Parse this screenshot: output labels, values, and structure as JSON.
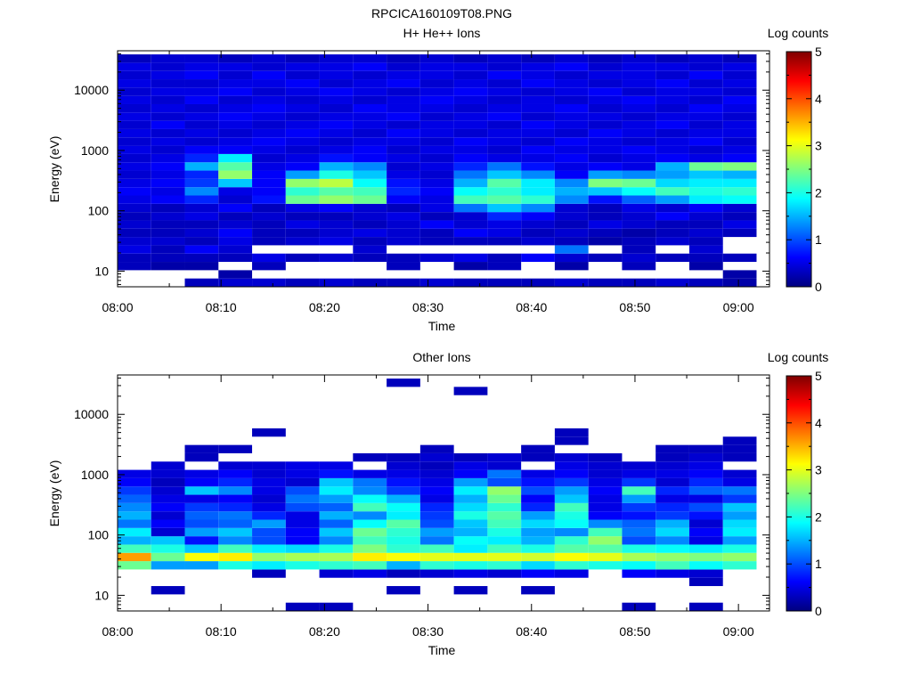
{
  "figure_title": "RPCICA160109T08.PNG",
  "colors": {
    "colormap": [
      "#00007f",
      "#0000ff",
      "#007fff",
      "#00ffff",
      "#7fff7f",
      "#ffff00",
      "#ff7f00",
      "#ff0000",
      "#7f0000"
    ],
    "background": "#ffffff",
    "axes": "#000000"
  },
  "chart_data": [
    {
      "type": "heatmap",
      "title": "H+ He++ Ions",
      "xlabel": "Time",
      "ylabel": "Energy (eV)",
      "x_tick_labels": [
        "08:00",
        "08:10",
        "08:20",
        "08:30",
        "08:40",
        "08:50",
        "09:00"
      ],
      "x_range_minutes": [
        0,
        63
      ],
      "y_tick_labels": [
        "10",
        "100",
        "1000",
        "10000"
      ],
      "y_scale": "log",
      "y_range_eV": [
        5.5,
        45000
      ],
      "time_bins_minutes": [
        0,
        3.25,
        6.5,
        9.75,
        13,
        16.25,
        19.5,
        22.75,
        26,
        29.25,
        32.5,
        35.75,
        39,
        42.25,
        45.5,
        48.75,
        52,
        55.25,
        58.5,
        61.75
      ],
      "energy_bins_eV": [
        5.5,
        7.55,
        10.36,
        14.23,
        19.53,
        26.81,
        36.8,
        50.52,
        69.35,
        95.2,
        130.7,
        179.4,
        246.3,
        338.1,
        464.1,
        637.2,
        874.7,
        1201,
        1648,
        2263,
        3106,
        4264,
        5853,
        8036,
        11030,
        15140,
        20790,
        28540,
        39180
      ],
      "colorbar_label": "Log counts",
      "colorbar_ticks": [
        "0",
        "1",
        "2",
        "3",
        "4",
        "5"
      ],
      "colorbar_range": [
        0,
        5
      ],
      "log_counts": [
        [
          0,
          0,
          0.3,
          0.4,
          0.4,
          0.3,
          0.4,
          0.3,
          0.3,
          0.4,
          0.3,
          0.3,
          0.3,
          0.4,
          0.3,
          0.3,
          0.4,
          0.3,
          0.2
        ],
        [
          0,
          0,
          0,
          0.2,
          0,
          0,
          0,
          0,
          0,
          0,
          0,
          0,
          0,
          0,
          0,
          0,
          0,
          0,
          0.2
        ],
        [
          0.3,
          0.2,
          0.2,
          0,
          0.3,
          0,
          0,
          0,
          0.3,
          0,
          0.2,
          0.3,
          0,
          0.2,
          0,
          0.3,
          0,
          0.2,
          0
        ],
        [
          0.3,
          0.3,
          0.3,
          0.3,
          0.5,
          0.3,
          0.4,
          0.3,
          0.3,
          0.4,
          0.5,
          0.3,
          0.6,
          0.4,
          0.3,
          0.4,
          0.3,
          0.3,
          0.3
        ],
        [
          0.5,
          0.3,
          0.6,
          0.4,
          0,
          0,
          0,
          0.4,
          0,
          0,
          0,
          0,
          0,
          1.2,
          0,
          0.3,
          0,
          0.4,
          0
        ],
        [
          0.4,
          0.4,
          0.3,
          0.5,
          0.3,
          0.4,
          0.5,
          0.3,
          0.4,
          0.3,
          0.3,
          0.3,
          0.4,
          0.3,
          0.2,
          0.3,
          0.4,
          0.3,
          0
        ],
        [
          0.3,
          0.3,
          0.4,
          0.6,
          0.3,
          0.3,
          0.4,
          0.5,
          0.4,
          0.3,
          0.6,
          0.5,
          0.3,
          0.4,
          0.3,
          0.2,
          0.3,
          0.4,
          0.3
        ],
        [
          0.4,
          0.3,
          0.3,
          0.4,
          0.3,
          0.5,
          0.4,
          0.3,
          0.4,
          0.6,
          0.4,
          0.5,
          0.4,
          0.3,
          0.5,
          0.4,
          0.3,
          0.3,
          0.5
        ],
        [
          0.3,
          0.4,
          0.5,
          0.3,
          0.4,
          0.3,
          0.3,
          0.4,
          0.5,
          0.3,
          0.4,
          0.8,
          0.6,
          0.4,
          0.3,
          0.4,
          0.6,
          0.4,
          0.3
        ],
        [
          0.4,
          0.3,
          0.4,
          0.6,
          0.3,
          0.5,
          0.6,
          0.4,
          0.3,
          0.5,
          1.2,
          1.6,
          1.3,
          0.4,
          0.3,
          0.5,
          0.4,
          0.6,
          0.4
        ],
        [
          0.5,
          0.6,
          0.8,
          0.4,
          0.7,
          2.4,
          2.6,
          2.4,
          0.6,
          0.5,
          2.2,
          2.3,
          2.1,
          1.3,
          0.7,
          1.1,
          1.4,
          1.8,
          1.9
        ],
        [
          0.6,
          0.5,
          1.3,
          0.5,
          0.6,
          2.1,
          2.3,
          2.2,
          0.8,
          0.6,
          1.9,
          2.1,
          1.8,
          1.5,
          1.6,
          1.9,
          2.2,
          2.0,
          2.1
        ],
        [
          0.5,
          0.6,
          0.9,
          1.6,
          0.6,
          2.6,
          2.8,
          1.9,
          0.7,
          0.5,
          1.5,
          2.3,
          1.8,
          1.3,
          2.5,
          2.4,
          1.7,
          1.8,
          1.8
        ],
        [
          0.4,
          0.5,
          0.8,
          2.6,
          0.6,
          1.4,
          2.0,
          1.6,
          0.5,
          0.4,
          1.2,
          1.6,
          1.3,
          0.6,
          1.4,
          1.3,
          1.4,
          1.6,
          1.5
        ],
        [
          0.5,
          0.6,
          1.5,
          2.3,
          0.5,
          0.6,
          1.5,
          1.3,
          0.4,
          0.5,
          0.8,
          1.2,
          0.7,
          0.5,
          0.6,
          0.5,
          1.5,
          2.4,
          2.5
        ],
        [
          0.4,
          0.5,
          0.8,
          1.8,
          0.4,
          0.5,
          0.7,
          0.6,
          0.5,
          0.4,
          0.6,
          0.5,
          0.5,
          0.6,
          0.4,
          0.5,
          0.6,
          0.5,
          0.6
        ],
        [
          0.5,
          0.4,
          0.6,
          0.6,
          0.5,
          0.4,
          0.5,
          0.6,
          0.4,
          0.5,
          0.5,
          0.4,
          0.6,
          0.5,
          0.5,
          0.6,
          0.5,
          0.4,
          0.5
        ],
        [
          0.4,
          0.5,
          0.4,
          0.5,
          0.6,
          0.5,
          0.4,
          0.5,
          0.5,
          0.4,
          0.6,
          0.5,
          0.4,
          0.6,
          0.5,
          0.4,
          0.5,
          0.6,
          0.4
        ],
        [
          0.5,
          0.4,
          0.5,
          0.4,
          0.5,
          0.6,
          0.5,
          0.4,
          0.6,
          0.5,
          0.4,
          0.5,
          0.5,
          0.4,
          0.6,
          0.5,
          0.4,
          0.5,
          0.5
        ],
        [
          0.4,
          0.6,
          0.4,
          0.5,
          0.4,
          0.5,
          0.6,
          0.5,
          0.4,
          0.5,
          0.5,
          0.4,
          0.6,
          0.5,
          0.4,
          0.5,
          0.6,
          0.4,
          0.5
        ],
        [
          0.5,
          0.4,
          0.5,
          0.6,
          0.5,
          0.4,
          0.5,
          0.5,
          0.6,
          0.4,
          0.5,
          0.6,
          0.4,
          0.5,
          0.5,
          0.4,
          0.5,
          0.5,
          0.4
        ],
        [
          0.4,
          0.5,
          0.4,
          0.5,
          0.6,
          0.5,
          0.4,
          0.6,
          0.5,
          0.5,
          0.4,
          0.5,
          0.5,
          0.6,
          0.4,
          0.5,
          0.4,
          0.6,
          0.5
        ],
        [
          0.5,
          0.4,
          0.6,
          0.4,
          0.5,
          0.4,
          0.5,
          0.4,
          0.5,
          0.6,
          0.5,
          0.4,
          0.5,
          0.4,
          0.5,
          0.6,
          0.5,
          0.4,
          0.6
        ],
        [
          0.4,
          0.5,
          0.5,
          0.6,
          0.4,
          0.5,
          0.6,
          0.5,
          0.4,
          0.5,
          0.6,
          0.5,
          0.4,
          0.5,
          0.6,
          0.4,
          0.5,
          0.5,
          0.4
        ],
        [
          0.5,
          0.4,
          0.4,
          0.5,
          0.5,
          0.6,
          0.4,
          0.5,
          0.6,
          0.4,
          0.5,
          0.4,
          0.6,
          0.5,
          0.4,
          0.5,
          0.6,
          0.4,
          0.5
        ],
        [
          0.4,
          0.5,
          0.6,
          0.4,
          0.6,
          0.4,
          0.5,
          0.4,
          0.5,
          0.5,
          0.4,
          0.6,
          0.5,
          0.4,
          0.5,
          0.5,
          0.4,
          0.6,
          0.4
        ],
        [
          0.5,
          0.4,
          0.5,
          0.5,
          0.4,
          0.5,
          0.5,
          0.6,
          0.4,
          0.5,
          0.5,
          0.4,
          0.5,
          0.6,
          0.4,
          0.5,
          0.5,
          0.4,
          0.5
        ],
        [
          0.3,
          0.4,
          0.4,
          0.3,
          0.4,
          0.3,
          0.4,
          0.4,
          0.3,
          0.4,
          0.3,
          0.4,
          0.3,
          0.4,
          0.3,
          0.4,
          0.3,
          0.4,
          0.3
        ]
      ]
    },
    {
      "type": "heatmap",
      "title": "Other Ions",
      "xlabel": "Time",
      "ylabel": "Energy (eV)",
      "x_tick_labels": [
        "08:00",
        "08:10",
        "08:20",
        "08:30",
        "08:40",
        "08:50",
        "09:00"
      ],
      "x_range_minutes": [
        0,
        63
      ],
      "y_tick_labels": [
        "10",
        "100",
        "1000",
        "10000"
      ],
      "y_scale": "log",
      "y_range_eV": [
        5.5,
        45000
      ],
      "time_bins_minutes": [
        0,
        3.25,
        6.5,
        9.75,
        13,
        16.25,
        19.5,
        22.75,
        26,
        29.25,
        32.5,
        35.75,
        39,
        42.25,
        45.5,
        48.75,
        52,
        55.25,
        58.5,
        61.75
      ],
      "energy_bins_eV": [
        5.5,
        7.55,
        10.36,
        14.23,
        19.53,
        26.81,
        36.8,
        50.52,
        69.35,
        95.2,
        130.7,
        179.4,
        246.3,
        338.1,
        464.1,
        637.2,
        874.7,
        1201,
        1648,
        2263,
        3106,
        4264,
        5853,
        8036,
        11030,
        15140,
        20790,
        28540,
        39180
      ],
      "colorbar_label": "Log counts",
      "colorbar_ticks": [
        "0",
        "1",
        "2",
        "3",
        "4",
        "5"
      ],
      "colorbar_range": [
        0,
        5
      ],
      "log_counts": [
        [
          0,
          0,
          0,
          0,
          0,
          0.3,
          0.3,
          0,
          0,
          0,
          0,
          0,
          0,
          0,
          0,
          0.3,
          0,
          0.3,
          0
        ],
        [
          0,
          0,
          0,
          0,
          0,
          0,
          0,
          0,
          0,
          0,
          0,
          0,
          0,
          0,
          0,
          0,
          0,
          0,
          0
        ],
        [
          0,
          0.3,
          0,
          0,
          0,
          0,
          0,
          0,
          0.3,
          0,
          0.3,
          0,
          0.3,
          0,
          0,
          0,
          0,
          0,
          0
        ],
        [
          0,
          0,
          0,
          0,
          0,
          0,
          0,
          0,
          0,
          0,
          0,
          0,
          0,
          0,
          0,
          0,
          0,
          0.3,
          0
        ],
        [
          0,
          0,
          0,
          0,
          0.3,
          0,
          0.4,
          0.5,
          0.3,
          0.4,
          0.5,
          0.4,
          0.6,
          0.5,
          0,
          0.6,
          0.5,
          0.4,
          0
        ],
        [
          2.4,
          1.4,
          1.4,
          2.0,
          1.8,
          2.0,
          2.1,
          2.2,
          1.5,
          2.1,
          2.0,
          2.1,
          1.7,
          2.1,
          2.0,
          1.9,
          2.2,
          1.9,
          2.1
        ],
        [
          3.6,
          2.4,
          3.1,
          3.2,
          2.6,
          2.7,
          2.7,
          3.2,
          3.1,
          3.0,
          3.0,
          3.0,
          2.9,
          3.1,
          3.0,
          2.7,
          2.6,
          2.5,
          2.6
        ],
        [
          2.2,
          2.0,
          1.6,
          2.2,
          1.8,
          1.7,
          2.0,
          2.5,
          2.1,
          2.2,
          1.8,
          2.2,
          2.0,
          2.3,
          2.3,
          2.0,
          1.9,
          1.8,
          2.0
        ],
        [
          1.5,
          1.6,
          0.7,
          1.3,
          1.0,
          0.6,
          1.3,
          2.2,
          2.0,
          1.2,
          1.9,
          1.8,
          1.5,
          2.1,
          2.6,
          1.0,
          1.3,
          0.5,
          1.4
        ],
        [
          1.8,
          0.4,
          1.4,
          1.6,
          1.0,
          0.6,
          1.6,
          2.4,
          2.1,
          1.4,
          1.5,
          2.0,
          1.4,
          1.3,
          2.2,
          1.2,
          1.7,
          0.6,
          1.8
        ],
        [
          1.2,
          0.6,
          1.0,
          1.1,
          1.4,
          0.5,
          1.1,
          1.9,
          2.3,
          1.0,
          1.6,
          2.2,
          1.7,
          1.9,
          1.3,
          1.1,
          1.5,
          0.4,
          1.7
        ],
        [
          1.5,
          0.4,
          1.1,
          1.2,
          0.8,
          0.5,
          1.5,
          1.3,
          1.8,
          0.9,
          2.0,
          2.3,
          1.4,
          2.0,
          0.6,
          0.7,
          0.9,
          0.7,
          1.4
        ],
        [
          1.3,
          0.6,
          0.9,
          0.8,
          0.5,
          1.0,
          1.1,
          2.2,
          1.9,
          0.8,
          1.7,
          2.1,
          0.8,
          2.2,
          0.5,
          0.9,
          0.8,
          1.0,
          1.6
        ],
        [
          1.1,
          0.5,
          0.5,
          0.6,
          0.4,
          1.2,
          1.4,
          1.9,
          1.5,
          0.5,
          1.5,
          2.4,
          0.6,
          1.6,
          0.5,
          1.4,
          0.5,
          0.5,
          0.9
        ],
        [
          0.9,
          0.4,
          1.6,
          1.3,
          0.5,
          1.0,
          1.8,
          1.3,
          0.9,
          0.6,
          1.8,
          2.6,
          1.0,
          1.4,
          0.6,
          2.2,
          0.8,
          1.1,
          1.2
        ],
        [
          0.6,
          0.3,
          0.6,
          0.8,
          0.5,
          0.4,
          1.6,
          1.2,
          0.7,
          0.5,
          1.4,
          1.0,
          0.7,
          0.9,
          0.5,
          0.9,
          0.4,
          0.8,
          0.5
        ],
        [
          0.5,
          0.4,
          0.5,
          0.6,
          0.4,
          0.5,
          0.7,
          0.5,
          0.5,
          0.4,
          0.6,
          1.2,
          0.5,
          0.6,
          0.4,
          0.5,
          0.5,
          0.6,
          0.4
        ],
        [
          0,
          0.4,
          0,
          0.4,
          0.4,
          0.5,
          0.5,
          0,
          0.4,
          0.3,
          0.5,
          0.4,
          0,
          0.5,
          0.4,
          0.4,
          0.4,
          0.5,
          0
        ],
        [
          0,
          0,
          0.3,
          0,
          0,
          0,
          0,
          0.3,
          0.3,
          0.4,
          0.3,
          0.4,
          0.3,
          0.4,
          0.3,
          0,
          0.3,
          0.4,
          0.3
        ],
        [
          0,
          0,
          0.3,
          0.3,
          0,
          0,
          0,
          0,
          0,
          0.3,
          0,
          0,
          0.3,
          0,
          0,
          0,
          0.3,
          0.3,
          0.3
        ],
        [
          0,
          0,
          0,
          0,
          0,
          0,
          0,
          0,
          0,
          0,
          0,
          0,
          0,
          0.3,
          0,
          0,
          0,
          0,
          0.3
        ],
        [
          0,
          0,
          0,
          0,
          0.3,
          0,
          0,
          0,
          0,
          0,
          0,
          0,
          0,
          0.3,
          0,
          0,
          0,
          0,
          0
        ],
        [
          0,
          0,
          0,
          0,
          0,
          0,
          0,
          0,
          0,
          0,
          0,
          0,
          0,
          0,
          0,
          0,
          0,
          0,
          0
        ],
        [
          0,
          0,
          0,
          0,
          0,
          0,
          0,
          0,
          0,
          0,
          0,
          0,
          0,
          0,
          0,
          0,
          0,
          0,
          0
        ],
        [
          0,
          0,
          0,
          0,
          0,
          0,
          0,
          0,
          0,
          0,
          0,
          0,
          0,
          0,
          0,
          0,
          0,
          0,
          0
        ],
        [
          0,
          0,
          0,
          0,
          0,
          0,
          0,
          0,
          0,
          0,
          0,
          0,
          0,
          0,
          0,
          0,
          0,
          0,
          0
        ],
        [
          0,
          0,
          0,
          0,
          0,
          0,
          0,
          0,
          0,
          0,
          0.3,
          0,
          0,
          0,
          0,
          0,
          0,
          0,
          0
        ],
        [
          0,
          0,
          0,
          0,
          0,
          0,
          0,
          0,
          0.3,
          0,
          0,
          0,
          0,
          0,
          0,
          0,
          0,
          0,
          0
        ]
      ]
    }
  ]
}
